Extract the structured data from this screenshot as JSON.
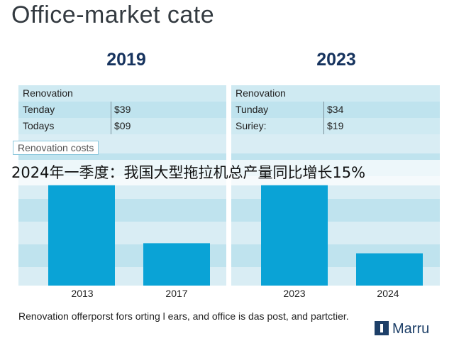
{
  "title": "Office-market cate",
  "headline": "2024年一季度：我国大型拖拉机总产量同比增长15%",
  "caption": "Renovation offerporst fors orting l ears, and office is das post, and partctier.",
  "brand": {
    "name": "Marru",
    "icon": "logo-square-icon",
    "color": "#1d3f68"
  },
  "chart_data": [
    {
      "type": "bar",
      "title": "2019",
      "table": {
        "header": "Renovation",
        "rows": [
          {
            "label": "Tenday",
            "value": "$39"
          },
          {
            "label": "Todays",
            "value": "$09"
          }
        ]
      },
      "legend": "Renovation costs",
      "categories": [
        "2013",
        "2017"
      ],
      "values": [
        100,
        42
      ],
      "ylim": [
        0,
        100
      ],
      "bar_color": "#0aa3d6"
    },
    {
      "type": "bar",
      "title": "2023",
      "table": {
        "header": "Renovation",
        "rows": [
          {
            "label": "Tunday",
            "value": "$34"
          },
          {
            "label": "Suriey:",
            "value": "$19"
          }
        ]
      },
      "categories": [
        "2023",
        "2024"
      ],
      "values": [
        100,
        32
      ],
      "ylim": [
        0,
        100
      ],
      "bar_color": "#0aa3d6"
    }
  ],
  "colors": {
    "panel": "#d9edf4",
    "band": "#bfe3ee",
    "bar": "#0aa3d6",
    "year": "#16335e"
  }
}
